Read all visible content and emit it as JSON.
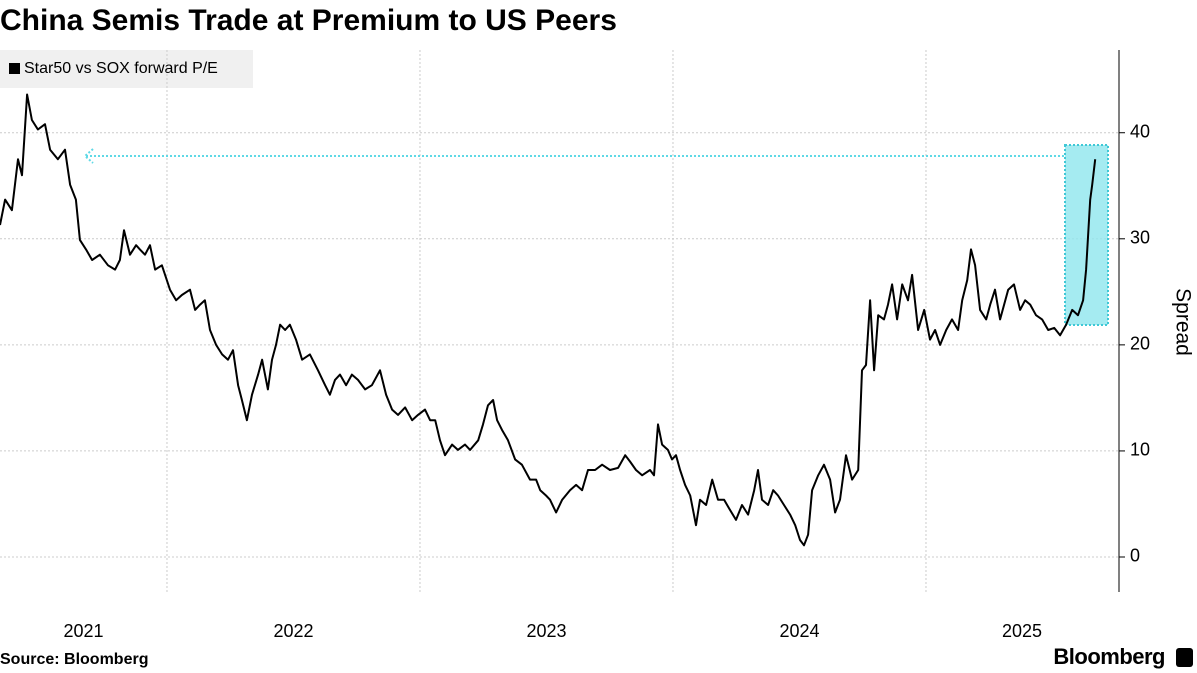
{
  "chart_data": {
    "type": "line",
    "title": "China Semis Trade at Premium to US Peers",
    "y_label": "Spread",
    "source": "Source: Bloomberg",
    "logo": "Bloomberg",
    "grid": true,
    "xlim": [
      2021.34,
      2025.759
    ],
    "ylim": [
      -3.3,
      47.8
    ],
    "xticks": [
      2021,
      2022,
      2023,
      2024,
      2025
    ],
    "yticks": [
      0,
      10,
      20,
      30,
      40
    ],
    "series": [
      {
        "name": "Star50 vs SOX forward P/E",
        "color": "#000000",
        "x": [
          2021.34,
          2021.36,
          2021.387,
          2021.411,
          2021.427,
          2021.447,
          2021.466,
          2021.49,
          2021.518,
          2021.538,
          2021.569,
          2021.597,
          2021.617,
          2021.64,
          2021.656,
          2021.68,
          2021.704,
          2021.735,
          2021.767,
          2021.795,
          2021.814,
          2021.83,
          2021.854,
          2021.878,
          2021.893,
          2021.913,
          2021.933,
          2021.953,
          2021.98,
          2022.012,
          2022.036,
          2022.059,
          2022.091,
          2022.111,
          2022.131,
          2022.15,
          2022.17,
          2022.194,
          2022.218,
          2022.241,
          2022.261,
          2022.281,
          2022.296,
          2022.316,
          2022.336,
          2022.36,
          2022.376,
          2022.399,
          2022.415,
          2022.431,
          2022.447,
          2022.467,
          2022.486,
          2022.51,
          2022.534,
          2022.565,
          2022.597,
          2022.625,
          2022.644,
          2022.664,
          2022.684,
          2022.708,
          2022.731,
          2022.755,
          2022.783,
          2022.81,
          2022.842,
          2022.866,
          2022.89,
          2022.913,
          2022.941,
          2022.969,
          2022.992,
          2023.02,
          2023.04,
          2023.06,
          2023.079,
          2023.099,
          2023.127,
          2023.15,
          2023.178,
          2023.198,
          2023.23,
          2023.249,
          2023.269,
          2023.289,
          2023.305,
          2023.324,
          2023.348,
          2023.376,
          2023.403,
          2023.435,
          2023.459,
          2023.475,
          2023.498,
          2023.514,
          2023.538,
          2023.562,
          2023.593,
          2023.617,
          2023.641,
          2023.664,
          2023.692,
          2023.72,
          2023.751,
          2023.783,
          2023.811,
          2023.83,
          2023.854,
          2023.878,
          2023.909,
          2023.925,
          2023.941,
          2023.957,
          2023.98,
          2023.996,
          2024.012,
          2024.028,
          2024.048,
          2024.068,
          2024.091,
          2024.107,
          2024.131,
          2024.155,
          2024.178,
          2024.202,
          2024.226,
          2024.249,
          2024.273,
          2024.297,
          2024.321,
          2024.336,
          2024.352,
          2024.376,
          2024.396,
          2024.415,
          2024.439,
          2024.463,
          2024.483,
          2024.502,
          2024.518,
          2024.534,
          2024.55,
          2024.574,
          2024.597,
          2024.621,
          2024.641,
          2024.66,
          2024.684,
          2024.708,
          2024.732,
          2024.747,
          2024.763,
          2024.779,
          2024.795,
          2024.811,
          2024.834,
          2024.85,
          2024.866,
          2024.886,
          2024.906,
          2024.929,
          2024.945,
          2024.969,
          2024.993,
          2025.016,
          2025.036,
          2025.056,
          2025.08,
          2025.103,
          2025.127,
          2025.143,
          2025.163,
          2025.178,
          2025.194,
          2025.214,
          2025.238,
          2025.254,
          2025.273,
          2025.293,
          2025.325,
          2025.348,
          2025.372,
          2025.392,
          2025.412,
          2025.435,
          2025.459,
          2025.483,
          2025.507,
          2025.53,
          2025.554,
          2025.578,
          2025.601,
          2025.621,
          2025.633,
          2025.649,
          2025.657,
          2025.669
        ],
        "values": [
          31.3,
          33.7,
          32.7,
          37.5,
          36.0,
          43.6,
          41.2,
          40.3,
          40.8,
          38.4,
          37.5,
          38.4,
          35.1,
          33.7,
          29.9,
          29.0,
          28.0,
          28.5,
          27.5,
          27.1,
          28.0,
          30.8,
          28.5,
          29.4,
          29.0,
          28.5,
          29.4,
          27.1,
          27.5,
          25.2,
          24.2,
          24.7,
          25.2,
          23.3,
          23.8,
          24.2,
          21.4,
          20.0,
          19.1,
          18.6,
          19.5,
          16.2,
          14.8,
          12.9,
          15.3,
          17.2,
          18.6,
          15.8,
          18.6,
          20.0,
          21.9,
          21.4,
          21.9,
          20.5,
          18.6,
          19.1,
          17.6,
          16.2,
          15.3,
          16.7,
          17.2,
          16.2,
          17.2,
          16.7,
          15.8,
          16.2,
          17.6,
          15.3,
          13.9,
          13.4,
          14.1,
          12.9,
          13.4,
          13.9,
          12.9,
          12.9,
          11.0,
          9.6,
          10.6,
          10.1,
          10.6,
          10.1,
          11.0,
          12.5,
          14.3,
          14.8,
          12.9,
          12.0,
          11.0,
          9.2,
          8.7,
          7.3,
          7.3,
          6.3,
          5.8,
          5.4,
          4.2,
          5.4,
          6.3,
          6.8,
          6.3,
          8.2,
          8.2,
          8.7,
          8.2,
          8.4,
          9.6,
          9.0,
          8.2,
          7.7,
          8.2,
          7.7,
          12.5,
          10.6,
          10.1,
          9.2,
          9.6,
          8.2,
          6.8,
          5.8,
          3.0,
          5.4,
          4.9,
          7.3,
          5.4,
          5.4,
          4.4,
          3.5,
          4.9,
          4.0,
          6.3,
          8.2,
          5.4,
          4.9,
          6.3,
          5.8,
          4.9,
          4.0,
          3.0,
          1.6,
          1.1,
          2.1,
          6.3,
          7.7,
          8.7,
          7.3,
          4.2,
          5.4,
          9.6,
          7.3,
          8.2,
          17.6,
          18.1,
          24.2,
          17.6,
          22.8,
          22.4,
          23.8,
          25.7,
          22.4,
          25.7,
          24.2,
          26.6,
          21.4,
          23.3,
          20.5,
          21.4,
          20.0,
          21.4,
          22.4,
          21.4,
          24.2,
          26.1,
          29.0,
          27.5,
          23.3,
          22.4,
          23.8,
          25.2,
          22.4,
          25.2,
          25.7,
          23.3,
          24.2,
          23.8,
          22.8,
          22.4,
          21.4,
          21.6,
          20.9,
          21.9,
          23.3,
          22.8,
          24.2,
          27.1,
          33.7,
          35.1,
          37.5
        ]
      }
    ]
  }
}
